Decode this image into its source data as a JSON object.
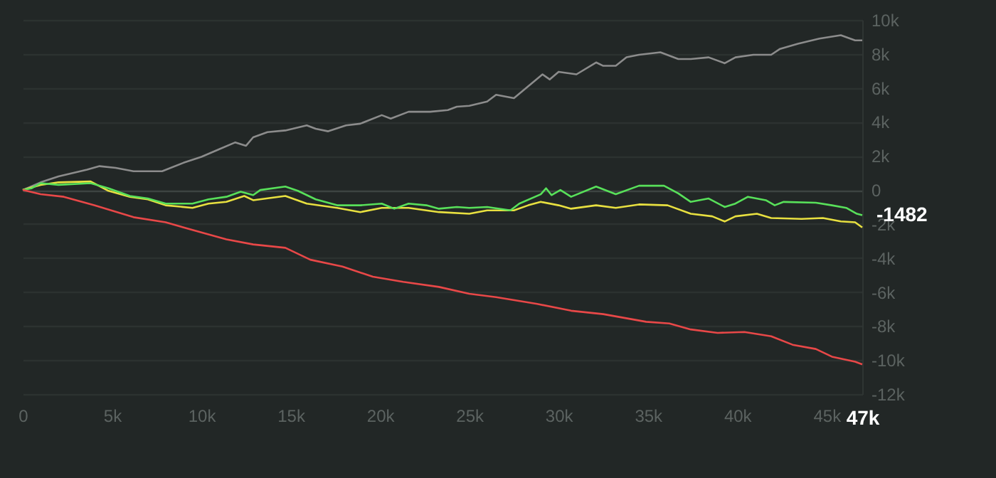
{
  "chart_data": {
    "type": "line",
    "xlim": [
      0,
      47000
    ],
    "ylim": [
      -12000,
      10000
    ],
    "xticks": [
      0,
      {
        "value": 5000,
        "label": "5k"
      },
      {
        "value": 10000,
        "label": "10k"
      },
      {
        "value": 15000,
        "label": "15k"
      },
      {
        "value": 20000,
        "label": "20k"
      },
      {
        "value": 25000,
        "label": "25k"
      },
      {
        "value": 30000,
        "label": "30k"
      },
      {
        "value": 35000,
        "label": "35k"
      },
      {
        "value": 40000,
        "label": "40k"
      },
      {
        "value": 45000,
        "label": "45k"
      },
      {
        "value": 47000,
        "label": "47k"
      }
    ],
    "yticks": [
      {
        "value": -12000,
        "label": "-12k"
      },
      {
        "value": -10000,
        "label": "-10k"
      },
      {
        "value": -8000,
        "label": "-8k"
      },
      {
        "value": -6000,
        "label": "-6k"
      },
      {
        "value": -4000,
        "label": "-4k"
      },
      {
        "value": -2000,
        "label": "-2k"
      },
      0,
      {
        "value": 2000,
        "label": "2k"
      },
      {
        "value": 4000,
        "label": "4k"
      },
      {
        "value": 6000,
        "label": "6k"
      },
      {
        "value": 8000,
        "label": "8k"
      },
      {
        "value": 10000,
        "label": "10k"
      }
    ],
    "grid": "y",
    "legend": false,
    "marker": "none",
    "line_style": "solid",
    "annotations": [
      {
        "text": "-1482",
        "x": 47000,
        "y": -1482
      }
    ],
    "series": [
      {
        "color": "#8c8c8c",
        "x": [
          0,
          1000,
          2000,
          3600,
          4300,
          5200,
          6200,
          7000,
          7800,
          9000,
          10000,
          11000,
          11900,
          12500,
          12900,
          13700,
          14700,
          15900,
          16400,
          17100,
          18100,
          18900,
          20100,
          20600,
          21600,
          22800,
          23800,
          24300,
          25000,
          26000,
          26500,
          27500,
          28300,
          29100,
          29500,
          30000,
          31000,
          32100,
          32500,
          33200,
          33800,
          34500,
          35700,
          36700,
          37400,
          38400,
          39300,
          39900,
          40900,
          41900,
          42400,
          43400,
          44600,
          45800,
          46600,
          47000
        ],
        "values": [
          0,
          450,
          800,
          1200,
          1400,
          1300,
          1100,
          1100,
          1100,
          1600,
          1950,
          2400,
          2800,
          2600,
          3100,
          3400,
          3500,
          3800,
          3600,
          3450,
          3800,
          3900,
          4400,
          4200,
          4600,
          4600,
          4700,
          4900,
          4950,
          5200,
          5600,
          5400,
          6100,
          6800,
          6500,
          6950,
          6800,
          7500,
          7300,
          7300,
          7800,
          7950,
          8100,
          7700,
          7700,
          7800,
          7450,
          7800,
          7950,
          7950,
          8300,
          8600,
          8900,
          9100,
          8800,
          8800
        ]
      },
      {
        "color": "#e8e040",
        "x": [
          0,
          1000,
          2000,
          3800,
          4800,
          6000,
          7000,
          8000,
          9500,
          10400,
          11400,
          12400,
          12900,
          14700,
          15900,
          17600,
          18900,
          20100,
          21600,
          23300,
          25000,
          26000,
          27500,
          28300,
          29000,
          30000,
          30700,
          32100,
          33200,
          34500,
          36100,
          37400,
          38600,
          39300,
          39900,
          41100,
          41900,
          43600,
          44800,
          45800,
          46600,
          47000
        ],
        "values": [
          0,
          300,
          450,
          500,
          -50,
          -400,
          -550,
          -900,
          -1050,
          -800,
          -700,
          -350,
          -600,
          -350,
          -800,
          -1050,
          -1300,
          -1050,
          -1050,
          -1300,
          -1400,
          -1200,
          -1200,
          -900,
          -700,
          -900,
          -1100,
          -900,
          -1050,
          -850,
          -900,
          -1400,
          -1550,
          -1850,
          -1550,
          -1400,
          -1650,
          -1700,
          -1650,
          -1850,
          -1900,
          -2200
        ]
      },
      {
        "color": "#58e05a",
        "x": [
          0,
          500,
          1000,
          2000,
          3800,
          4800,
          6000,
          7000,
          8000,
          9500,
          10400,
          11400,
          12200,
          12900,
          13300,
          14700,
          15400,
          16400,
          17600,
          18900,
          20100,
          20800,
          21600,
          22600,
          23300,
          24300,
          25000,
          26000,
          27300,
          27800,
          29000,
          29300,
          29600,
          30100,
          30700,
          32100,
          33200,
          34500,
          35900,
          36700,
          37400,
          38400,
          39300,
          39900,
          40600,
          41600,
          42100,
          42600,
          44400,
          45300,
          46100,
          46700,
          47000
        ],
        "values": [
          0,
          100,
          400,
          300,
          400,
          100,
          -350,
          -500,
          -800,
          -800,
          -550,
          -400,
          -100,
          -300,
          0,
          200,
          -50,
          -550,
          -900,
          -900,
          -800,
          -1100,
          -800,
          -900,
          -1100,
          -1000,
          -1050,
          -1000,
          -1200,
          -800,
          -250,
          100,
          -300,
          0,
          -400,
          200,
          -250,
          250,
          250,
          -200,
          -700,
          -500,
          -1000,
          -800,
          -400,
          -600,
          -900,
          -700,
          -750,
          -900,
          -1050,
          -1400,
          -1482
        ]
      },
      {
        "color": "#e84848",
        "x": [
          0,
          1000,
          2300,
          4000,
          6200,
          8000,
          10000,
          11400,
          12900,
          14700,
          16100,
          17900,
          19600,
          21300,
          23300,
          25000,
          26500,
          28800,
          30700,
          32500,
          34900,
          36200,
          37400,
          38900,
          40400,
          41900,
          43100,
          44400,
          45300,
          46600,
          47000
        ],
        "values": [
          0,
          -250,
          -400,
          -900,
          -1600,
          -1900,
          -2500,
          -2900,
          -3200,
          -3400,
          -4100,
          -4500,
          -5100,
          -5400,
          -5700,
          -6100,
          -6300,
          -6700,
          -7100,
          -7300,
          -7750,
          -7850,
          -8200,
          -8400,
          -8350,
          -8600,
          -9100,
          -9350,
          -9800,
          -10100,
          -10250
        ]
      }
    ]
  }
}
